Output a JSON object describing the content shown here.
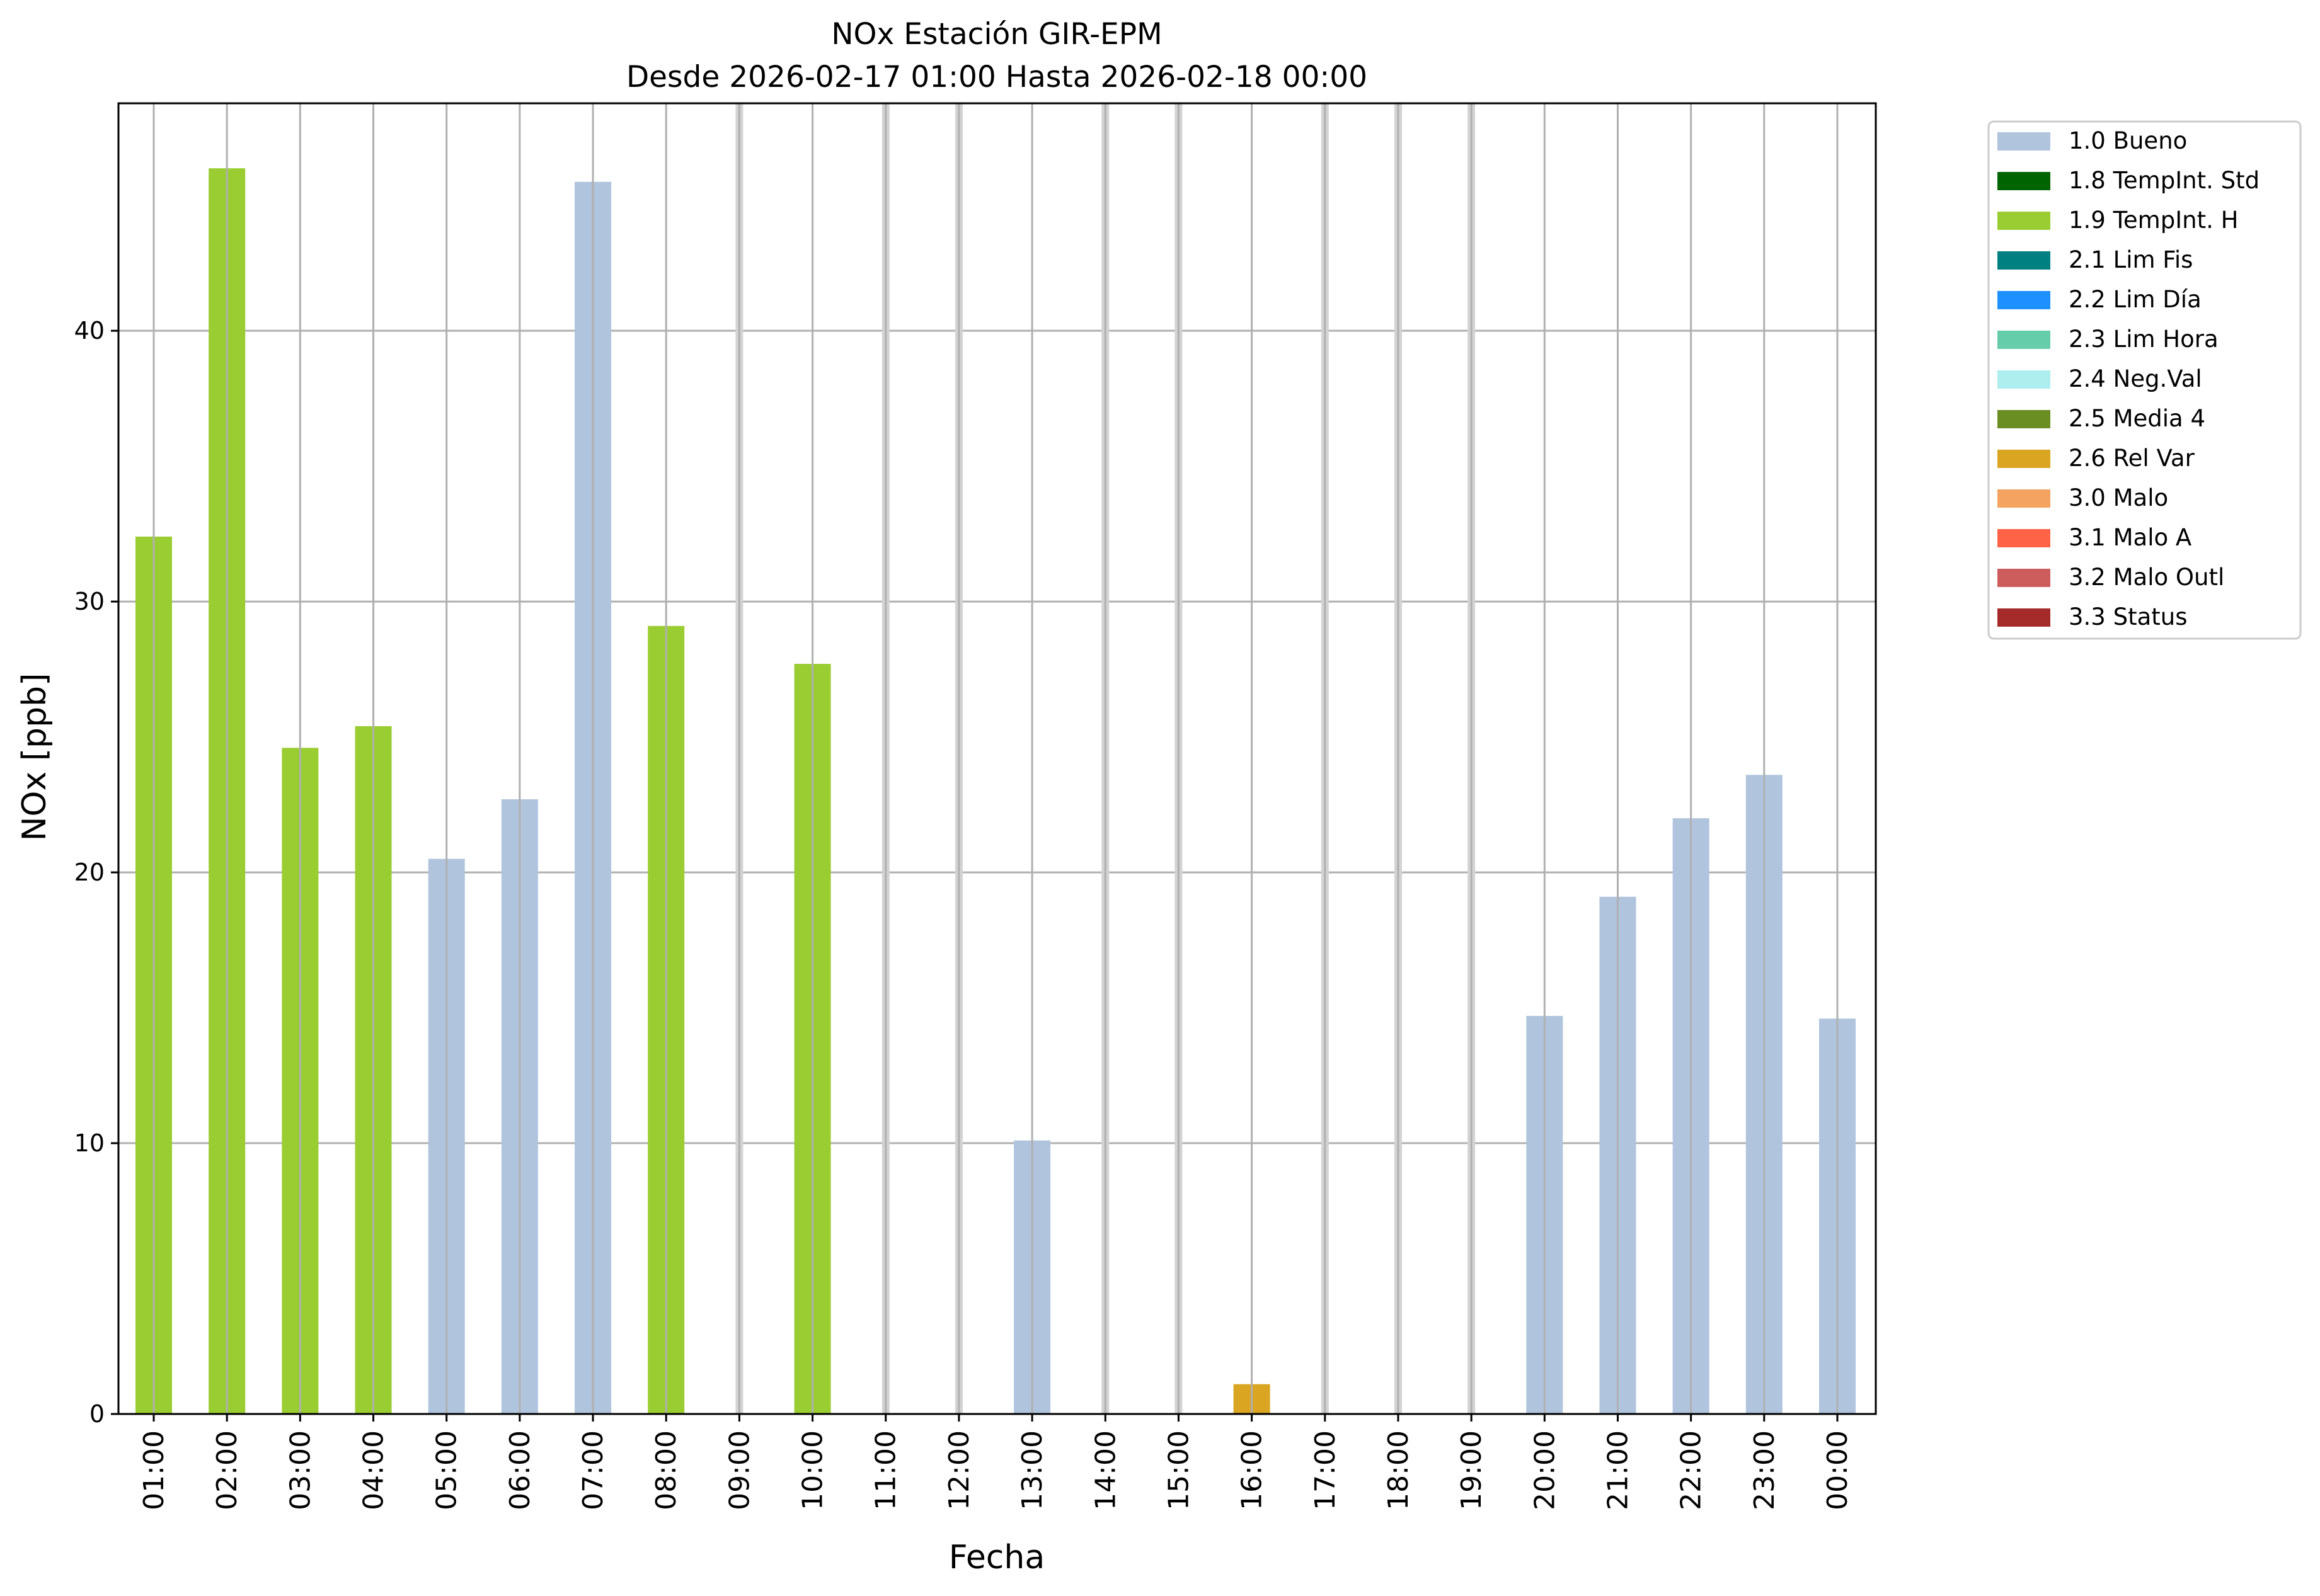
{
  "chart_data": {
    "type": "bar",
    "title": "NOx Estación GIR-EPM",
    "subtitle": "Desde 2026-02-17 01:00 Hasta 2026-02-18 00:00",
    "xlabel": "Fecha",
    "ylabel": "NOx [ppb]",
    "ylim": [
      0,
      48.4
    ],
    "yticks": [
      0,
      10,
      20,
      30,
      40
    ],
    "grid": true,
    "legend_position": "outside-top-right",
    "categories": [
      "01:00",
      "02:00",
      "03:00",
      "04:00",
      "05:00",
      "06:00",
      "07:00",
      "08:00",
      "09:00",
      "10:00",
      "11:00",
      "12:00",
      "13:00",
      "14:00",
      "15:00",
      "16:00",
      "17:00",
      "18:00",
      "19:00",
      "20:00",
      "21:00",
      "22:00",
      "23:00",
      "00:00"
    ],
    "values": [
      32.4,
      46.0,
      24.6,
      25.4,
      20.5,
      22.7,
      45.5,
      29.1,
      null,
      27.7,
      null,
      null,
      10.1,
      null,
      null,
      1.1,
      null,
      null,
      null,
      14.7,
      19.1,
      22.0,
      23.6,
      14.6
    ],
    "flags": [
      "1.9 TempInt. H",
      "1.9 TempInt. H",
      "1.9 TempInt. H",
      "1.9 TempInt. H",
      "1.0 Bueno",
      "1.0 Bueno",
      "1.0 Bueno",
      "1.9 TempInt. H",
      null,
      "1.9 TempInt. H",
      null,
      null,
      "1.0 Bueno",
      null,
      null,
      "2.6 Rel Var",
      null,
      null,
      null,
      "1.0 Bueno",
      "1.0 Bueno",
      "1.0 Bueno",
      "1.0 Bueno",
      "1.0 Bueno"
    ],
    "legend": [
      {
        "label": "1.0 Bueno",
        "color": "#b0c4de"
      },
      {
        "label": "1.8 TempInt. Std",
        "color": "#006400"
      },
      {
        "label": "1.9 TempInt. H",
        "color": "#9acd32"
      },
      {
        "label": "2.1 Lim Fis",
        "color": "#008080"
      },
      {
        "label": "2.2 Lim Día",
        "color": "#1e90ff"
      },
      {
        "label": "2.3 Lim Hora",
        "color": "#66cdaa"
      },
      {
        "label": "2.4 Neg.Val",
        "color": "#afeeee"
      },
      {
        "label": "2.5 Media 4",
        "color": "#6b8e23"
      },
      {
        "label": "2.6 Rel Var",
        "color": "#daa520"
      },
      {
        "label": "3.0 Malo",
        "color": "#f4a460"
      },
      {
        "label": "3.1 Malo A",
        "color": "#ff6347"
      },
      {
        "label": "3.2 Malo Outl",
        "color": "#cd5c5c"
      },
      {
        "label": "3.3 Status",
        "color": "#a52a2a"
      }
    ]
  }
}
